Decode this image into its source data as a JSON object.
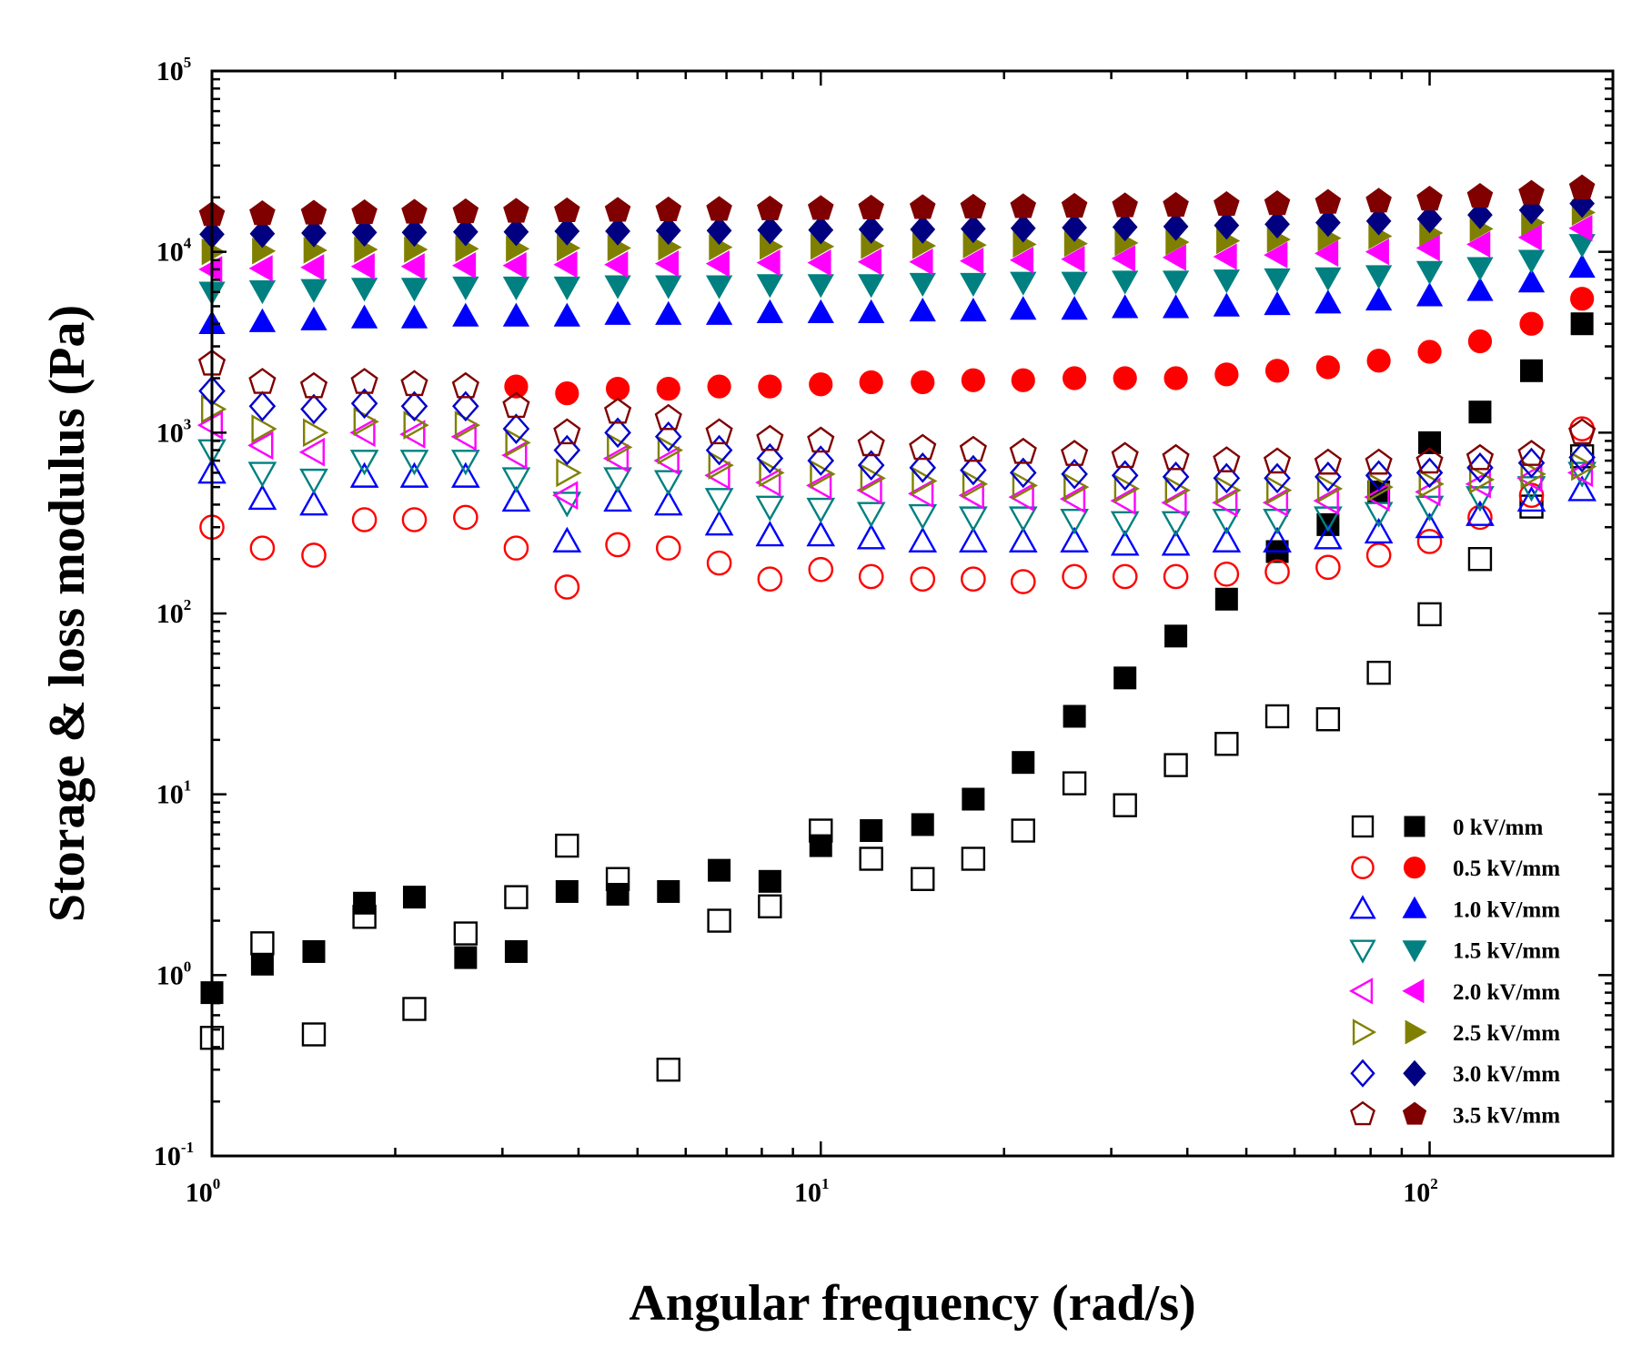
{
  "chart_data": {
    "type": "scatter",
    "title": "",
    "xlabel": "Angular frequency (rad/s)",
    "ylabel": "Storage & loss modulus (Pa)",
    "xscale": "log",
    "yscale": "log",
    "xlim": [
      1,
      200
    ],
    "ylim": [
      0.1,
      100000
    ],
    "grid": false,
    "legend_position": "bottom-right",
    "x_ticks": [
      {
        "value": 1,
        "base": "10",
        "exp": "0"
      },
      {
        "value": 10,
        "base": "10",
        "exp": "1"
      },
      {
        "value": 100,
        "base": "10",
        "exp": "2"
      }
    ],
    "y_ticks": [
      {
        "value": 0.1,
        "base": "10",
        "exp": "-1"
      },
      {
        "value": 1,
        "base": "10",
        "exp": "0"
      },
      {
        "value": 10,
        "base": "10",
        "exp": "1"
      },
      {
        "value": 100,
        "base": "10",
        "exp": "2"
      },
      {
        "value": 1000,
        "base": "10",
        "exp": "3"
      },
      {
        "value": 10000,
        "base": "10",
        "exp": "4"
      },
      {
        "value": 100000,
        "base": "10",
        "exp": "5"
      }
    ],
    "x": [
      1.0,
      1.21,
      1.47,
      1.78,
      2.15,
      2.61,
      3.16,
      3.83,
      4.64,
      5.62,
      6.81,
      8.25,
      10.0,
      12.1,
      14.7,
      17.8,
      21.5,
      26.1,
      31.6,
      38.3,
      46.4,
      56.2,
      68.1,
      82.5,
      100,
      121,
      147,
      178
    ],
    "series": [
      {
        "field": "0 kV/mm",
        "name": "0 kV/mm (open)",
        "shape": "square",
        "filled": false,
        "color": "#000000",
        "values": [
          0.45,
          1.5,
          0.47,
          2.1,
          0.65,
          1.7,
          2.7,
          5.2,
          3.4,
          0.3,
          2.0,
          2.4,
          6.3,
          4.4,
          3.4,
          4.4,
          6.3,
          11.5,
          8.7,
          14.5,
          19,
          27,
          26,
          47,
          99,
          200,
          390,
          740
        ]
      },
      {
        "field": "0 kV/mm",
        "name": "0 kV/mm (filled)",
        "shape": "square",
        "filled": true,
        "color": "#000000",
        "values": [
          0.8,
          1.15,
          1.35,
          2.5,
          2.7,
          1.25,
          1.35,
          2.9,
          2.8,
          2.9,
          3.8,
          3.3,
          5.2,
          6.3,
          6.8,
          9.4,
          15,
          27,
          44,
          75,
          120,
          220,
          310,
          470,
          880,
          1300,
          2200,
          4000
        ]
      },
      {
        "field": "0.5 kV/mm",
        "name": "0.5 kV/mm (open)",
        "shape": "circle",
        "filled": false,
        "color": "#ff0000",
        "values": [
          300,
          230,
          210,
          330,
          330,
          340,
          230,
          140,
          240,
          230,
          190,
          155,
          175,
          160,
          155,
          155,
          150,
          160,
          160,
          160,
          165,
          170,
          180,
          210,
          250,
          340,
          450,
          1050
        ]
      },
      {
        "field": "0.5 kV/mm",
        "name": "0.5 kV/mm (filled)",
        "shape": "circle",
        "filled": true,
        "color": "#ff0000",
        "values": [
          null,
          null,
          null,
          null,
          null,
          null,
          1800,
          1650,
          1750,
          1750,
          1800,
          1800,
          1850,
          1900,
          1900,
          1950,
          1950,
          2000,
          2000,
          2000,
          2100,
          2200,
          2300,
          2500,
          2800,
          3200,
          4000,
          5500
        ]
      },
      {
        "field": "1.0 kV/mm",
        "name": "1.0 kV/mm (open)",
        "shape": "triangle-up",
        "filled": false,
        "color": "#0000ff",
        "values": [
          600,
          430,
          400,
          570,
          570,
          570,
          420,
          250,
          420,
          400,
          310,
          270,
          270,
          260,
          250,
          250,
          250,
          250,
          240,
          240,
          250,
          250,
          260,
          280,
          300,
          350,
          420,
          480
        ]
      },
      {
        "field": "1.0 kV/mm",
        "name": "1.0 kV/mm (filled)",
        "shape": "triangle-up",
        "filled": true,
        "color": "#0000ff",
        "values": [
          4000,
          4100,
          4200,
          4300,
          4300,
          4400,
          4400,
          4400,
          4500,
          4500,
          4500,
          4600,
          4600,
          4600,
          4700,
          4700,
          4800,
          4800,
          4900,
          4900,
          5000,
          5100,
          5200,
          5400,
          5700,
          6100,
          6800,
          8200
        ]
      },
      {
        "field": "1.5 kV/mm",
        "name": "1.5 kV/mm (open)",
        "shape": "triangle-down",
        "filled": false,
        "color": "#008080",
        "values": [
          800,
          600,
          550,
          700,
          700,
          700,
          560,
          410,
          560,
          540,
          430,
          390,
          380,
          360,
          350,
          340,
          340,
          330,
          320,
          320,
          330,
          330,
          340,
          360,
          390,
          440,
          500,
          600
        ]
      },
      {
        "field": "1.5 kV/mm",
        "name": "1.5 kV/mm (filled)",
        "shape": "triangle-down",
        "filled": true,
        "color": "#008080",
        "values": [
          6000,
          6100,
          6200,
          6300,
          6300,
          6400,
          6400,
          6400,
          6500,
          6500,
          6500,
          6600,
          6600,
          6600,
          6700,
          6700,
          6800,
          6800,
          6900,
          6900,
          7000,
          7100,
          7200,
          7400,
          7800,
          8200,
          9000,
          11000
        ]
      },
      {
        "field": "2.0 kV/mm",
        "name": "2.0 kV/mm (open)",
        "shape": "triangle-left",
        "filled": false,
        "color": "#ff00ff",
        "values": [
          1100,
          850,
          780,
          1000,
          980,
          950,
          750,
          450,
          720,
          700,
          580,
          530,
          510,
          480,
          460,
          450,
          440,
          430,
          420,
          410,
          410,
          410,
          420,
          440,
          470,
          520,
          560,
          600
        ]
      },
      {
        "field": "2.0 kV/mm",
        "name": "2.0 kV/mm (filled)",
        "shape": "triangle-left",
        "filled": true,
        "color": "#ff00ff",
        "values": [
          8000,
          8100,
          8200,
          8300,
          8300,
          8400,
          8400,
          8500,
          8500,
          8600,
          8600,
          8700,
          8700,
          8800,
          8800,
          8900,
          9000,
          9100,
          9200,
          9300,
          9400,
          9600,
          9800,
          10000,
          10500,
          11000,
          12000,
          13500
        ]
      },
      {
        "field": "2.5 kV/mm",
        "name": "2.5 kV/mm (open)",
        "shape": "triangle-right",
        "filled": false,
        "color": "#808000",
        "values": [
          1350,
          1050,
          1000,
          1150,
          1100,
          1100,
          880,
          600,
          830,
          800,
          660,
          600,
          590,
          560,
          540,
          520,
          510,
          500,
          490,
          480,
          480,
          480,
          490,
          500,
          520,
          550,
          590,
          650
        ]
      },
      {
        "field": "2.5 kV/mm",
        "name": "2.5 kV/mm (filled)",
        "shape": "triangle-right",
        "filled": true,
        "color": "#808000",
        "values": [
          10000,
          10100,
          10200,
          10300,
          10300,
          10400,
          10400,
          10500,
          10500,
          10600,
          10600,
          10700,
          10700,
          10800,
          10800,
          10900,
          11000,
          11100,
          11200,
          11300,
          11500,
          11700,
          11900,
          12200,
          12700,
          13400,
          14500,
          16500
        ]
      },
      {
        "field": "3.0 kV/mm",
        "name": "3.0 kV/mm (open)",
        "shape": "diamond",
        "filled": false,
        "color": "#0000cd",
        "values": [
          1700,
          1400,
          1350,
          1450,
          1400,
          1400,
          1050,
          800,
          1000,
          950,
          800,
          720,
          700,
          660,
          640,
          620,
          600,
          590,
          580,
          570,
          560,
          560,
          570,
          580,
          600,
          640,
          680,
          730
        ]
      },
      {
        "field": "3.0 kV/mm",
        "name": "3.0 kV/mm (filled)",
        "shape": "diamond",
        "filled": true,
        "color": "#000080",
        "values": [
          12500,
          12600,
          12700,
          12800,
          12800,
          12900,
          12900,
          13000,
          13000,
          13100,
          13100,
          13200,
          13200,
          13300,
          13300,
          13400,
          13500,
          13600,
          13700,
          13800,
          14000,
          14200,
          14500,
          14800,
          15200,
          16000,
          17000,
          18500
        ]
      },
      {
        "field": "3.5 kV/mm",
        "name": "3.5 kV/mm (open)",
        "shape": "pentagon",
        "filled": false,
        "color": "#800000",
        "values": [
          2400,
          1900,
          1800,
          1900,
          1850,
          1800,
          1400,
          1000,
          1300,
          1200,
          1000,
          920,
          900,
          860,
          820,
          800,
          780,
          760,
          740,
          720,
          700,
          690,
          680,
          680,
          690,
          720,
          760,
          1000
        ]
      },
      {
        "field": "3.5 kV/mm",
        "name": "3.5 kV/mm (filled)",
        "shape": "pentagon",
        "filled": true,
        "color": "#800000",
        "values": [
          16000,
          16200,
          16300,
          16400,
          16500,
          16600,
          16700,
          16800,
          16900,
          17000,
          17100,
          17200,
          17300,
          17400,
          17500,
          17600,
          17700,
          17800,
          17900,
          18000,
          18200,
          18400,
          18700,
          19000,
          19500,
          20200,
          21000,
          22500
        ]
      }
    ],
    "legend": [
      {
        "label": "0 kV/mm",
        "shape": "square",
        "color_open": "#000000",
        "color_filled": "#000000"
      },
      {
        "label": "0.5 kV/mm",
        "shape": "circle",
        "color_open": "#ff0000",
        "color_filled": "#ff0000"
      },
      {
        "label": "1.0 kV/mm",
        "shape": "triangle-up",
        "color_open": "#0000ff",
        "color_filled": "#0000ff"
      },
      {
        "label": "1.5 kV/mm",
        "shape": "triangle-down",
        "color_open": "#008080",
        "color_filled": "#008080"
      },
      {
        "label": "2.0 kV/mm",
        "shape": "triangle-left",
        "color_open": "#ff00ff",
        "color_filled": "#ff00ff"
      },
      {
        "label": "2.5 kV/mm",
        "shape": "triangle-right",
        "color_open": "#808000",
        "color_filled": "#808000"
      },
      {
        "label": "3.0 kV/mm",
        "shape": "diamond",
        "color_open": "#0000cd",
        "color_filled": "#000080"
      },
      {
        "label": "3.5 kV/mm",
        "shape": "pentagon",
        "color_open": "#800000",
        "color_filled": "#800000"
      }
    ]
  }
}
